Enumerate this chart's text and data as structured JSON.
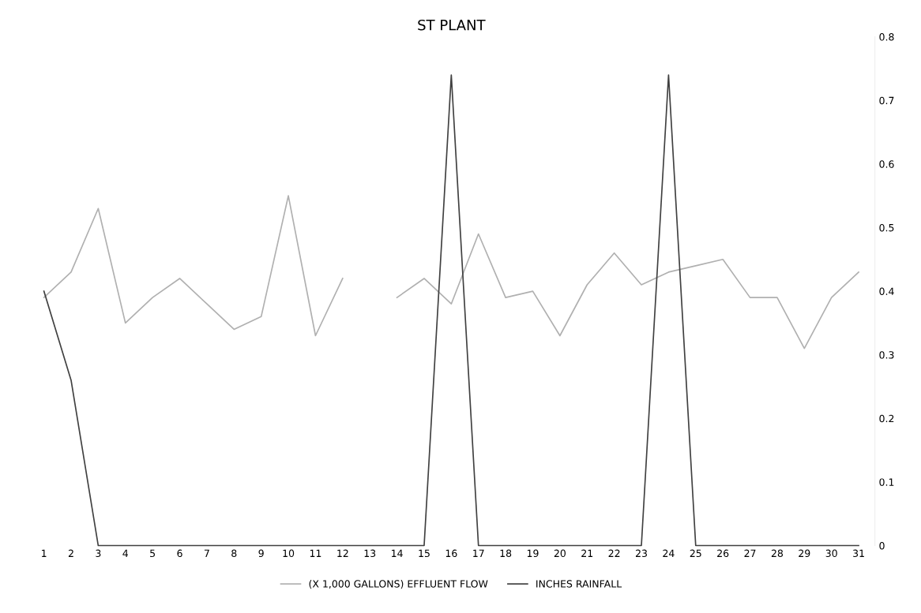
{
  "chart_data": {
    "type": "line",
    "title": "ST PLANT",
    "categories": [
      "1",
      "2",
      "3",
      "4",
      "5",
      "6",
      "7",
      "8",
      "9",
      "10",
      "11",
      "12",
      "13",
      "14",
      "15",
      "16",
      "17",
      "18",
      "19",
      "20",
      "21",
      "22",
      "23",
      "24",
      "25",
      "26",
      "27",
      "28",
      "29",
      "30",
      "31"
    ],
    "series": [
      {
        "name": "(X 1,000 GALLONS) EFFLUENT FLOW",
        "color": "#b0b0b0",
        "values": [
          0.39,
          0.43,
          0.53,
          0.35,
          0.39,
          0.42,
          0.38,
          0.34,
          0.36,
          0.55,
          0.33,
          0.42,
          null,
          0.39,
          0.42,
          0.38,
          0.49,
          0.39,
          0.4,
          0.33,
          0.41,
          0.46,
          0.41,
          0.43,
          0.44,
          0.45,
          0.39,
          0.39,
          0.31,
          0.39,
          0.43
        ]
      },
      {
        "name": "INCHES RAINFALL",
        "color": "#404040",
        "values": [
          0.4,
          0.26,
          0,
          0,
          0,
          0,
          0,
          0,
          0,
          0,
          0,
          0,
          0,
          0,
          0,
          0.74,
          0,
          0,
          0,
          0,
          0,
          0,
          0,
          0.74,
          0,
          0,
          0,
          0,
          0,
          0,
          0
        ]
      }
    ],
    "ylim": [
      0,
      0.8
    ],
    "yticks": [
      0,
      0.1,
      0.2,
      0.3,
      0.4,
      0.5,
      0.6,
      0.7,
      0.8
    ],
    "grid": false,
    "legend": "bottom"
  }
}
